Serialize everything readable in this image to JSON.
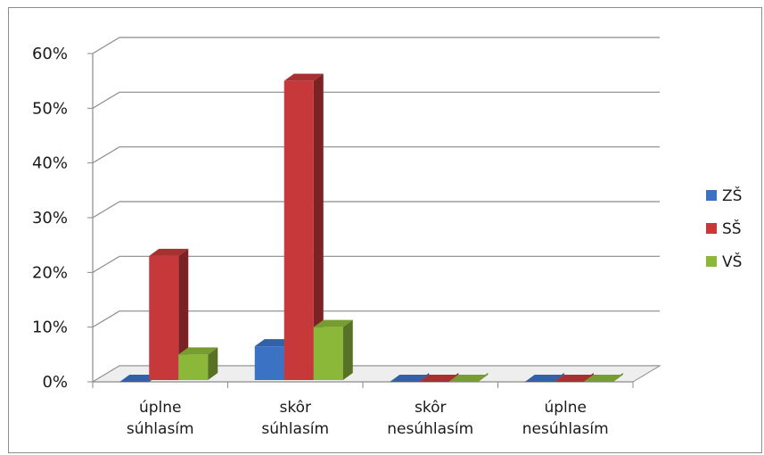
{
  "chart_data": {
    "type": "bar",
    "style": "3d-clustered-column",
    "categories": [
      [
        "úplne",
        "súhlasím"
      ],
      [
        "skôr",
        "súhlasím"
      ],
      [
        "skôr",
        "nesúhlasím"
      ],
      [
        "úplne",
        "nesúhlasím"
      ]
    ],
    "series": [
      {
        "name": "ZŠ",
        "color": "#3b72c4",
        "values": [
          0,
          6.5,
          0,
          0
        ]
      },
      {
        "name": "SŠ",
        "color": "#c7383a",
        "values": [
          23,
          55,
          0,
          0
        ]
      },
      {
        "name": "VŠ",
        "color": "#8cb83a",
        "values": [
          5,
          10,
          0,
          0
        ]
      }
    ],
    "yticks": [
      "0%",
      "10%",
      "20%",
      "30%",
      "40%",
      "50%",
      "60%"
    ],
    "ylim": [
      0,
      60
    ],
    "grid": true,
    "legend": "right"
  }
}
